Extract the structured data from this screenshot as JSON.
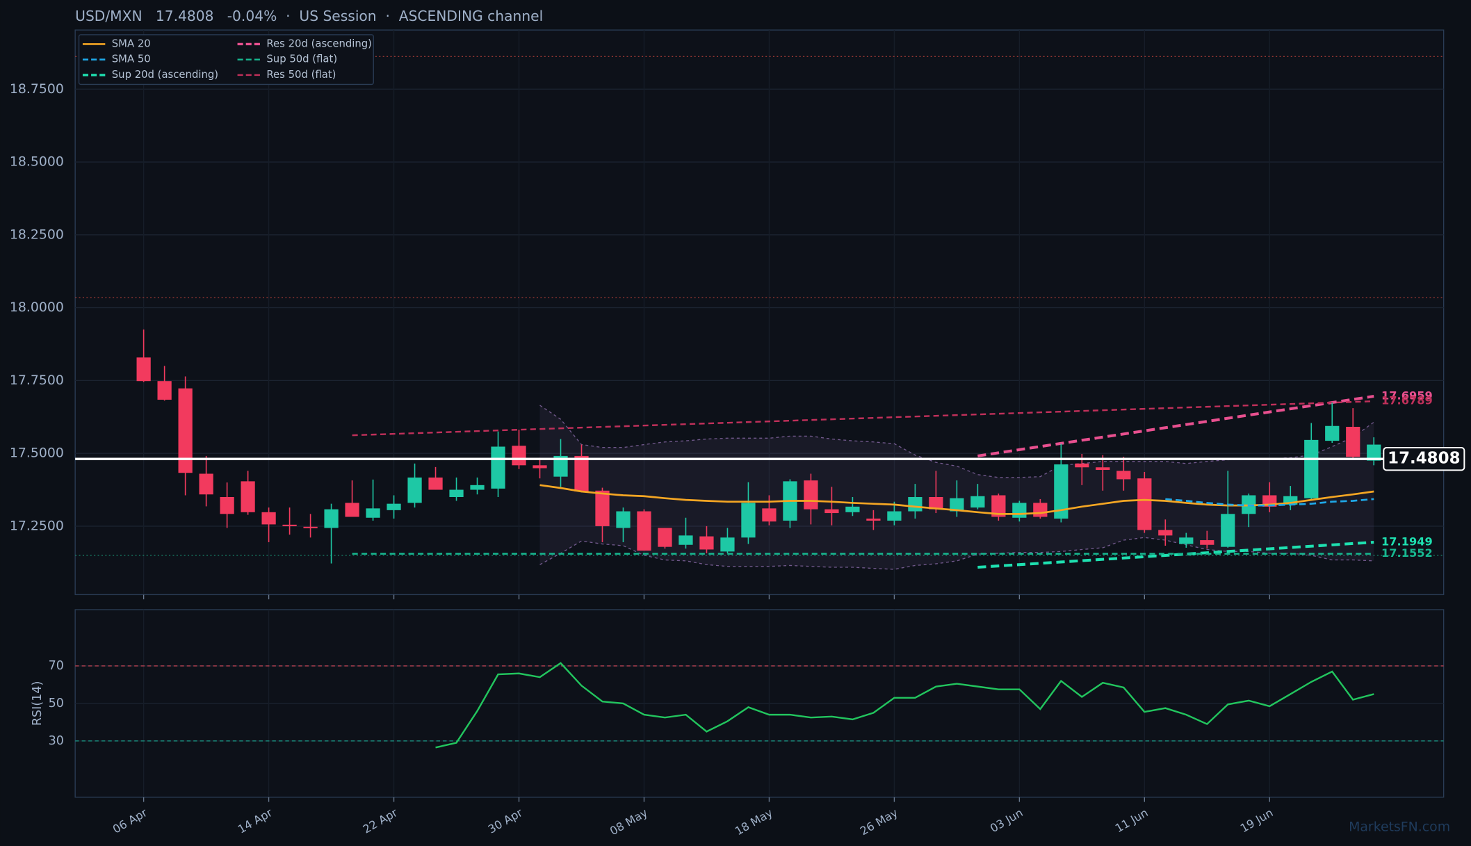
{
  "title": "USD/MXN   17.4808   -0.04%  ·  US Session  ·  ASCENDING channel",
  "watermark": "MarketsFN.com",
  "chart_data": [
    {
      "type": "candlestick",
      "categories": [
        "06 Apr",
        null,
        null,
        null,
        null,
        null,
        "14 Apr",
        null,
        null,
        null,
        null,
        null,
        "22 Apr",
        null,
        null,
        null,
        null,
        null,
        "30 Apr",
        null,
        null,
        null,
        null,
        null,
        "08 May",
        null,
        null,
        null,
        null,
        null,
        "18 May",
        null,
        null,
        null,
        null,
        null,
        "26 May",
        null,
        null,
        null,
        null,
        null,
        "03 Jun",
        null,
        null,
        null,
        null,
        null,
        "11 Jun",
        null,
        null,
        null,
        null,
        null,
        "19 Jun",
        null,
        null,
        null,
        null,
        null
      ],
      "open": [
        17.829,
        17.748,
        17.723,
        17.43,
        17.35,
        17.404,
        17.298,
        17.255,
        17.248,
        17.244,
        17.33,
        17.279,
        17.305,
        17.33,
        17.417,
        17.35,
        17.375,
        17.379,
        17.526,
        17.459,
        17.42,
        17.491,
        17.372,
        17.244,
        17.301,
        17.244,
        17.186,
        17.215,
        17.163,
        17.211,
        17.311,
        17.269,
        17.407,
        17.308,
        17.298,
        17.276,
        17.269,
        17.301,
        17.35,
        17.301,
        17.314,
        17.356,
        17.279,
        17.33,
        17.276,
        17.465,
        17.452,
        17.44,
        17.414,
        17.237,
        17.189,
        17.202,
        17.179,
        17.292,
        17.356,
        17.324,
        17.346,
        17.543,
        17.591,
        17.475
      ],
      "high": [
        17.925,
        17.8,
        17.764,
        17.491,
        17.4,
        17.44,
        17.314,
        17.314,
        17.292,
        17.327,
        17.407,
        17.41,
        17.356,
        17.465,
        17.453,
        17.417,
        17.417,
        17.575,
        17.581,
        17.485,
        17.549,
        17.53,
        17.382,
        17.314,
        17.308,
        17.244,
        17.279,
        17.25,
        17.244,
        17.401,
        17.356,
        17.411,
        17.43,
        17.385,
        17.35,
        17.305,
        17.334,
        17.395,
        17.44,
        17.407,
        17.395,
        17.362,
        17.337,
        17.343,
        17.533,
        17.498,
        17.494,
        17.488,
        17.436,
        17.273,
        17.227,
        17.234,
        17.44,
        17.362,
        17.401,
        17.388,
        17.604,
        17.674,
        17.655,
        17.555
      ],
      "low": [
        17.745,
        17.681,
        17.356,
        17.318,
        17.244,
        17.289,
        17.195,
        17.221,
        17.211,
        17.122,
        17.282,
        17.269,
        17.276,
        17.314,
        17.375,
        17.337,
        17.359,
        17.35,
        17.446,
        17.414,
        17.385,
        17.366,
        17.195,
        17.195,
        17.166,
        17.173,
        17.173,
        17.157,
        17.157,
        17.189,
        17.253,
        17.244,
        17.256,
        17.253,
        17.285,
        17.237,
        17.253,
        17.276,
        17.295,
        17.282,
        17.308,
        17.269,
        17.266,
        17.276,
        17.263,
        17.391,
        17.372,
        17.372,
        17.227,
        17.183,
        17.176,
        17.173,
        17.176,
        17.247,
        17.298,
        17.305,
        17.34,
        17.536,
        17.485,
        17.459
      ],
      "close": [
        17.748,
        17.684,
        17.433,
        17.359,
        17.292,
        17.298,
        17.256,
        17.25,
        17.246,
        17.308,
        17.282,
        17.311,
        17.327,
        17.417,
        17.375,
        17.375,
        17.391,
        17.523,
        17.459,
        17.449,
        17.491,
        17.369,
        17.25,
        17.301,
        17.166,
        17.179,
        17.218,
        17.17,
        17.211,
        17.33,
        17.266,
        17.404,
        17.308,
        17.295,
        17.317,
        17.269,
        17.301,
        17.35,
        17.308,
        17.346,
        17.353,
        17.282,
        17.33,
        17.282,
        17.462,
        17.452,
        17.443,
        17.411,
        17.237,
        17.218,
        17.211,
        17.186,
        17.292,
        17.356,
        17.317,
        17.353,
        17.546,
        17.594,
        17.488,
        17.53
      ],
      "up_color": "#1ec8a5",
      "down_color": "#f23a5e",
      "series": [
        {
          "name": "SMA 20",
          "color": "#f5a623",
          "dash": false,
          "values": [
            null,
            null,
            null,
            null,
            null,
            null,
            null,
            null,
            null,
            null,
            null,
            null,
            null,
            null,
            null,
            null,
            null,
            null,
            null,
            17.391,
            17.381,
            17.369,
            17.362,
            17.356,
            17.353,
            17.346,
            17.34,
            17.337,
            17.334,
            17.334,
            17.334,
            17.337,
            17.337,
            17.334,
            17.33,
            17.327,
            17.324,
            17.317,
            17.311,
            17.305,
            17.298,
            17.292,
            17.292,
            17.295,
            17.305,
            17.317,
            17.327,
            17.337,
            17.34,
            17.337,
            17.33,
            17.324,
            17.321,
            17.321,
            17.324,
            17.33,
            17.34,
            17.35,
            17.359,
            17.369
          ]
        },
        {
          "name": "SMA 50",
          "color": "#1fa8e8",
          "dash": true,
          "values": [
            null,
            null,
            null,
            null,
            null,
            null,
            null,
            null,
            null,
            null,
            null,
            null,
            null,
            null,
            null,
            null,
            null,
            null,
            null,
            null,
            null,
            null,
            null,
            null,
            null,
            null,
            null,
            null,
            null,
            null,
            null,
            null,
            null,
            null,
            null,
            null,
            null,
            null,
            null,
            null,
            null,
            null,
            null,
            null,
            null,
            null,
            null,
            null,
            null,
            17.343,
            17.337,
            17.33,
            17.324,
            17.321,
            17.321,
            17.324,
            17.327,
            17.334,
            17.337,
            17.343
          ]
        }
      ],
      "trend_lines": [
        {
          "name": "Sup 20d (ascending)",
          "color": "#1ee0b0",
          "width": 3,
          "x": [
            40,
            59
          ],
          "values": [
            17.109,
            17.1949
          ]
        },
        {
          "name": "Res 20d (ascending)",
          "color": "#e8508f",
          "width": 3,
          "x": [
            40,
            59
          ],
          "values": [
            17.491,
            17.6959
          ]
        },
        {
          "name": "Sup 50d (flat)",
          "color": "#17b890",
          "width": 1.8,
          "x": [
            10,
            59
          ],
          "values": [
            17.1552,
            17.1552
          ]
        },
        {
          "name": "Res 50d (flat)",
          "color": "#c0305a",
          "width": 1.8,
          "x": [
            10,
            59
          ],
          "values": [
            17.562,
            17.6789
          ]
        }
      ],
      "bands": {
        "color": "#8a6aa8",
        "upper": [
          null,
          null,
          null,
          null,
          null,
          null,
          null,
          null,
          null,
          null,
          null,
          null,
          null,
          null,
          null,
          null,
          null,
          null,
          null,
          17.665,
          17.617,
          17.53,
          17.52,
          17.52,
          17.53,
          17.539,
          17.543,
          17.549,
          17.552,
          17.552,
          17.552,
          17.559,
          17.559,
          17.549,
          17.543,
          17.539,
          17.533,
          17.494,
          17.469,
          17.456,
          17.427,
          17.417,
          17.417,
          17.42,
          17.459,
          17.465,
          17.472,
          17.472,
          17.472,
          17.472,
          17.465,
          17.472,
          17.478,
          17.481,
          17.481,
          17.485,
          17.494,
          17.523,
          17.555,
          17.607
        ],
        "lower": [
          null,
          null,
          null,
          null,
          null,
          null,
          null,
          null,
          null,
          null,
          null,
          null,
          null,
          null,
          null,
          null,
          null,
          null,
          null,
          17.118,
          17.157,
          17.199,
          17.189,
          17.183,
          17.15,
          17.134,
          17.131,
          17.118,
          17.112,
          17.112,
          17.112,
          17.115,
          17.112,
          17.109,
          17.109,
          17.105,
          17.102,
          17.115,
          17.121,
          17.131,
          17.154,
          17.157,
          17.16,
          17.16,
          17.163,
          17.17,
          17.176,
          17.202,
          17.211,
          17.202,
          17.186,
          17.17,
          17.163,
          17.163,
          17.157,
          17.157,
          17.15,
          17.134,
          17.134,
          17.131
        ]
      },
      "levels": [
        {
          "value": 18.862,
          "color": "#b5403a"
        },
        {
          "value": 18.034,
          "color": "#b5403a"
        },
        {
          "value": 17.15,
          "color": "#1a9a78"
        }
      ],
      "last_price": 17.4808,
      "ylim": [
        17.015,
        18.953
      ],
      "yticks": [
        {
          "value": 17.25,
          "label": "17.2500"
        },
        {
          "value": 17.5,
          "label": "17.5000"
        },
        {
          "value": 17.75,
          "label": "17.7500"
        },
        {
          "value": 18.0,
          "label": "18.0000"
        },
        {
          "value": 18.25,
          "label": "18.2500"
        },
        {
          "value": 18.5,
          "label": "18.5000"
        },
        {
          "value": 18.75,
          "label": "18.7500"
        }
      ],
      "grid": true,
      "legend": "upper left"
    },
    {
      "type": "line",
      "ylabel": "RSI(14)",
      "series": [
        {
          "color": "#22c55e",
          "values": [
            null,
            null,
            null,
            null,
            null,
            null,
            null,
            null,
            null,
            null,
            null,
            null,
            null,
            null,
            26.5,
            29,
            46,
            65.5,
            66,
            64,
            71.5,
            59.5,
            51,
            50,
            44,
            42.5,
            44,
            35,
            40.5,
            48,
            44,
            44,
            42.5,
            43,
            41.5,
            45,
            53,
            53,
            59,
            60.5,
            59,
            57.5,
            57.5,
            47,
            62,
            53.5,
            61,
            58.5,
            45.5,
            47.5,
            44,
            39,
            49.5,
            51.5,
            48.5,
            55,
            61.5,
            67,
            52,
            55
          ]
        }
      ],
      "reference_lines": [
        {
          "value": 70,
          "color": "#b5404f"
        },
        {
          "value": 30,
          "color": "#1a9a88"
        }
      ],
      "ylim": [
        0,
        100
      ],
      "yticks": [
        30,
        50,
        70
      ],
      "grid": true
    }
  ]
}
